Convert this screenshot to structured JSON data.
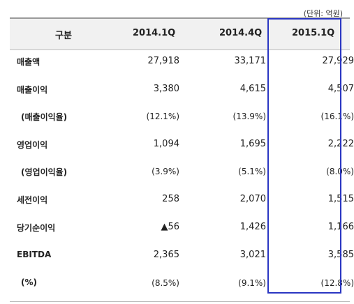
{
  "unit_note": "(단위: 억원)",
  "headers": [
    "구분",
    "2014.1Q",
    "2014.4Q",
    "2015.1Q"
  ],
  "rows": [
    {
      "label": "매출액",
      "v": [
        "27,918",
        "33,171",
        "27,929"
      ]
    },
    {
      "label": "매출이익",
      "v": [
        "3,380",
        "4,615",
        "4,507"
      ]
    },
    {
      "label": "(매출이익율)",
      "v": [
        "(12.1%)",
        "(13.9%)",
        "(16.1%)"
      ]
    },
    {
      "label": "영업이익",
      "v": [
        "1,094",
        "1,695",
        "2,222"
      ]
    },
    {
      "label": "(영업이익율)",
      "v": [
        "(3.9%)",
        "(5.1%)",
        "(8.0%)"
      ]
    },
    {
      "label": "세전이익",
      "v": [
        "258",
        "2,070",
        "1,515"
      ]
    },
    {
      "label": "당기순이익",
      "v": [
        "▲56",
        "1,426",
        "1,166"
      ]
    },
    {
      "label": "EBITDA",
      "v": [
        "2,365",
        "3,021",
        "3,585"
      ]
    },
    {
      "label": "(%)",
      "v": [
        "(8.5%)",
        "(9.1%)",
        "(12.8%)"
      ]
    }
  ]
}
